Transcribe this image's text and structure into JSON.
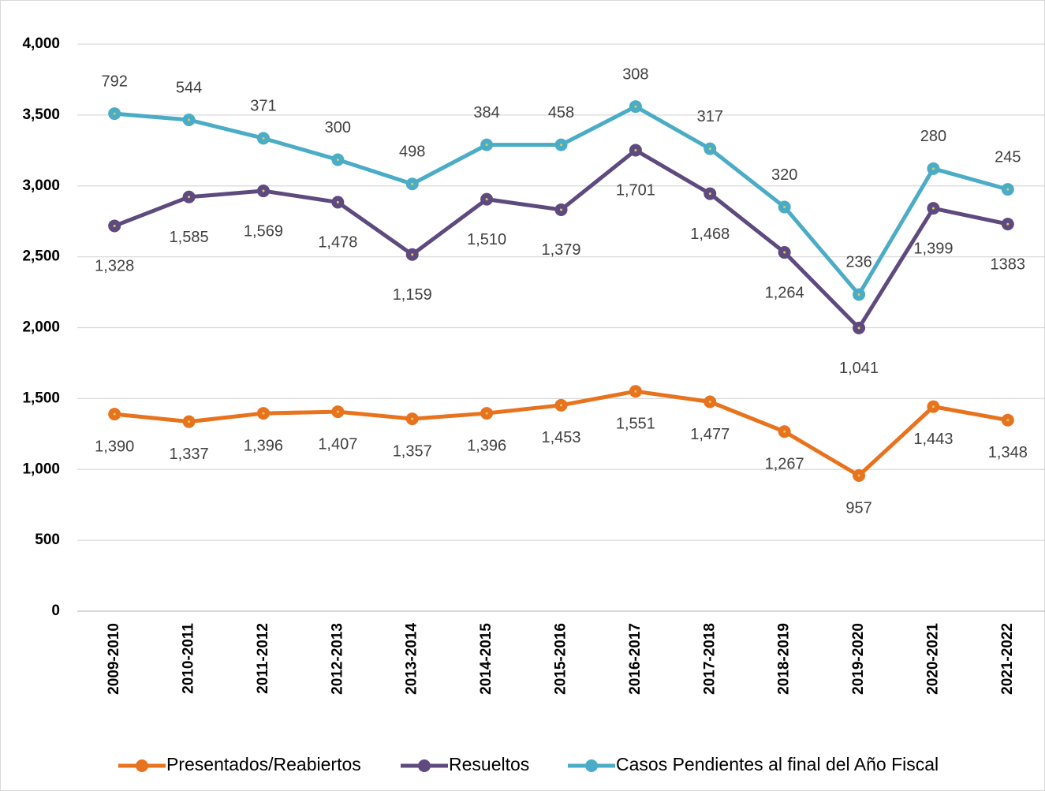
{
  "chart_data": {
    "type": "stacked_line",
    "categories": [
      "2009-2010",
      "2010-2011",
      "2011-2012",
      "2012-2013",
      "2013-2014",
      "2014-2015",
      "2015-2016",
      "2016-2017",
      "2017-2018",
      "2018-2019",
      "2019-2020",
      "2020-2021",
      "2021-2022"
    ],
    "series": [
      {
        "name": "Presentados/Reabiertos",
        "color": "#e8731e",
        "values": [
          1390,
          1337,
          1396,
          1407,
          1357,
          1396,
          1453,
          1551,
          1477,
          1267,
          957,
          1443,
          1348
        ],
        "value_labels": [
          "1,390",
          "1,337",
          "1,396",
          "1,407",
          "1,357",
          "1,396",
          "1,453",
          "1,551",
          "1,477",
          "1,267",
          "957",
          "1,443",
          "1,348"
        ]
      },
      {
        "name": "Resueltos",
        "color": "#5e4a7e",
        "values": [
          1328,
          1585,
          1569,
          1478,
          1159,
          1510,
          1379,
          1701,
          1468,
          1264,
          1041,
          1399,
          1383
        ],
        "value_labels": [
          "1,328",
          "1,585",
          "1,569",
          "1,478",
          "1,159",
          "1,510",
          "1,379",
          "1,701",
          "1,468",
          "1,264",
          "1,041",
          "1,399",
          "1383"
        ]
      },
      {
        "name": "Casos Pendientes al final del Año Fiscal",
        "color": "#4bacc6",
        "values": [
          792,
          544,
          371,
          300,
          498,
          384,
          458,
          308,
          317,
          320,
          236,
          280,
          245
        ],
        "value_labels": [
          "792",
          "544",
          "371",
          "300",
          "498",
          "384",
          "458",
          "308",
          "317",
          "320",
          "236",
          "280",
          "245"
        ]
      }
    ],
    "ylim": [
      0,
      4000
    ],
    "yticks": [
      0,
      500,
      {
        "value": 1000,
        "label": "1,000"
      },
      {
        "value": 1500,
        "label": "1,500"
      },
      {
        "value": 2000,
        "label": "2,000"
      },
      {
        "value": 2500,
        "label": "2,500"
      },
      {
        "value": 3000,
        "label": "3,000"
      },
      {
        "value": 3500,
        "label": "3,500"
      },
      {
        "value": 4000,
        "label": "4,000"
      }
    ],
    "grid": true,
    "legend": "bottom"
  }
}
